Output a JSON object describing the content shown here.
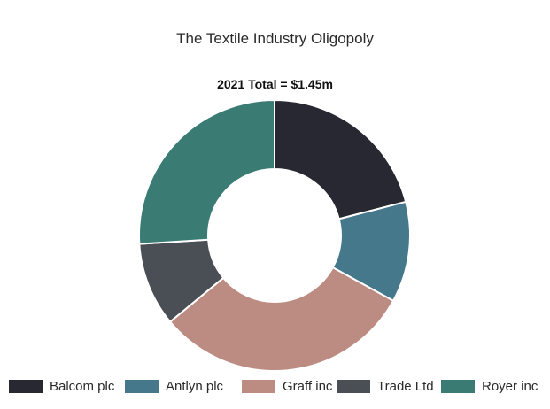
{
  "chart_data": {
    "type": "pie",
    "title": "The Textile Industry Oligopoly",
    "subtitle": "2021 Total = $1.45m",
    "categories": [
      "Balcom plc",
      "Antlyn plc",
      "Graff inc",
      "Trade Ltd",
      "Royer inc"
    ],
    "values": [
      21,
      12,
      31,
      10,
      26
    ],
    "colors": [
      "#282832",
      "#46788c",
      "#bc8c82",
      "#4a4f55",
      "#3a7c74"
    ],
    "donut": true,
    "legend_position": "bottom"
  },
  "legend": {
    "items": [
      {
        "label": "Balcom plc",
        "color": "#282832"
      },
      {
        "label": "Antlyn plc",
        "color": "#46788c"
      },
      {
        "label": "Graff inc",
        "color": "#bc8c82"
      },
      {
        "label": "Trade Ltd",
        "color": "#4a4f55"
      },
      {
        "label": "Royer inc",
        "color": "#3a7c74"
      }
    ]
  }
}
